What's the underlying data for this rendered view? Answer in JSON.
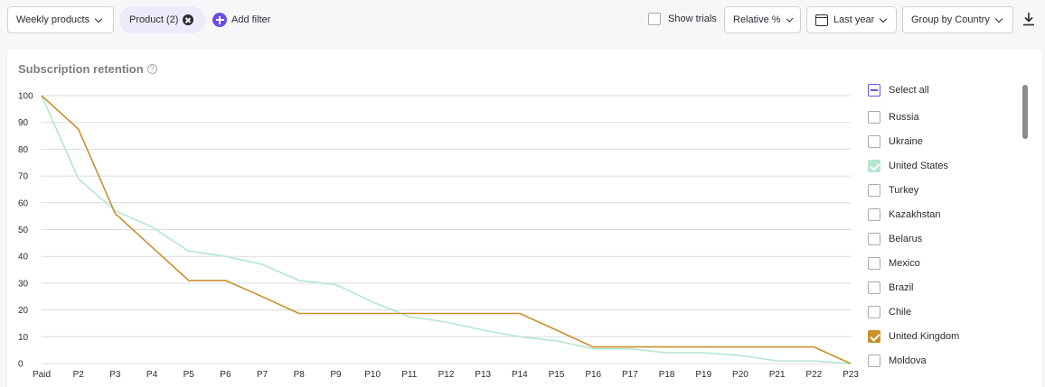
{
  "toolbar": {
    "products_label": "Weekly products",
    "chip_label": "Product (2)",
    "add_filter_label": "Add filter",
    "show_trials_label": "Show trials",
    "relative_label": "Relative %",
    "period_label": "Last year",
    "group_label": "Group by Country"
  },
  "card": {
    "title": "Subscription retention"
  },
  "legend": {
    "select_all": "Select all",
    "items": [
      {
        "label": "Russia",
        "checked": false,
        "color": ""
      },
      {
        "label": "Ukraine",
        "checked": false,
        "color": ""
      },
      {
        "label": "United States",
        "checked": true,
        "color": "#b5e6cf"
      },
      {
        "label": "Turkey",
        "checked": false,
        "color": ""
      },
      {
        "label": "Kazakhstan",
        "checked": false,
        "color": ""
      },
      {
        "label": "Belarus",
        "checked": false,
        "color": ""
      },
      {
        "label": "Mexico",
        "checked": false,
        "color": ""
      },
      {
        "label": "Brazil",
        "checked": false,
        "color": ""
      },
      {
        "label": "Chile",
        "checked": false,
        "color": ""
      },
      {
        "label": "United Kingdom",
        "checked": true,
        "color": "#c8902c"
      },
      {
        "label": "Moldova",
        "checked": false,
        "color": ""
      }
    ]
  },
  "chart_data": {
    "type": "line",
    "title": "Subscription retention",
    "x": [
      "Paid",
      "P2",
      "P3",
      "P4",
      "P5",
      "P6",
      "P7",
      "P8",
      "P9",
      "P10",
      "P11",
      "P12",
      "P13",
      "P14",
      "P15",
      "P16",
      "P17",
      "P18",
      "P19",
      "P20",
      "P21",
      "P22",
      "P23"
    ],
    "y_ticks": [
      0,
      10,
      20,
      30,
      40,
      50,
      60,
      70,
      80,
      90,
      100
    ],
    "ylim": [
      0,
      100
    ],
    "grid": true,
    "legend": "right",
    "series": [
      {
        "name": "United States",
        "color": "#b5e6cf",
        "values": [
          100,
          69,
          57,
          51,
          42,
          40,
          37,
          31,
          29.5,
          23,
          17.5,
          15.5,
          12.5,
          10,
          8.5,
          5.5,
          5.5,
          4,
          4,
          3,
          1,
          1,
          0
        ]
      },
      {
        "name": "United Kingdom",
        "color": "#c8902c",
        "values": [
          100,
          87.5,
          56,
          43.5,
          31,
          31,
          25,
          18.7,
          18.7,
          18.7,
          18.7,
          18.7,
          18.7,
          18.7,
          12.5,
          6.2,
          6.2,
          6.2,
          6.2,
          6.2,
          6.2,
          6.2,
          0
        ]
      }
    ]
  }
}
